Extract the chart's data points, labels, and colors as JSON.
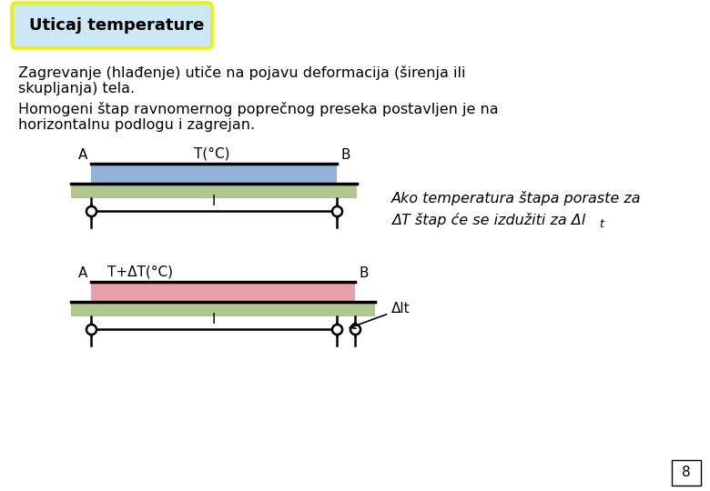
{
  "title_box_text": "Uticaj temperature",
  "title_box_bg": "#cce8f4",
  "title_box_border": "#f0f000",
  "body_bg": "#ffffff",
  "bar1_label": "T(°C)",
  "bar1_color": "#92b4d8",
  "bar2_label": "T+ΔT(°C)",
  "bar2_color": "#e8a0a8",
  "ground_color": "#b0c890",
  "bar_border": "#000000",
  "anno_line1": "Ako temperatura štapa poraste za",
  "anno_line2": "ΔT štap će se izdužiti za Δl",
  "anno_sub": "t",
  "page_num": "8",
  "A_label": "A",
  "B_label": "B",
  "l_label": "l",
  "delta_l_label": "Δl",
  "delta_l_sub": "t"
}
